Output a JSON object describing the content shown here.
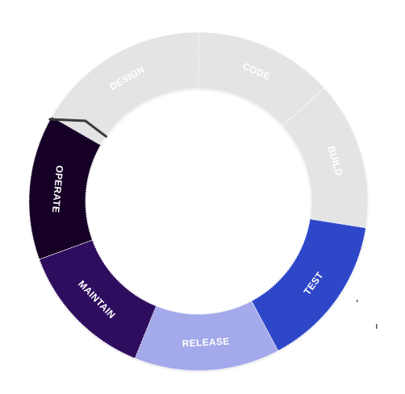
{
  "diagram": {
    "segments": [
      {
        "id": "design",
        "label": "DESIGN",
        "color": "#e4e4e4",
        "text_color": "#ffffff",
        "active": false
      },
      {
        "id": "code",
        "label": "CODE",
        "color": "#e4e4e4",
        "text_color": "#ffffff",
        "active": false
      },
      {
        "id": "build",
        "label": "BUILD",
        "color": "#e4e4e4",
        "text_color": "#ffffff",
        "active": false
      },
      {
        "id": "test",
        "label": "TEST",
        "color": "#2f46c9",
        "text_color": "#ffffff",
        "active": true
      },
      {
        "id": "release",
        "label": "RELEASE",
        "color": "#a3a9ea",
        "text_color": "#ffffff",
        "active": true
      },
      {
        "id": "maintain",
        "label": "MAINTAIN",
        "color": "#2d0a5e",
        "text_color": "#ffffff",
        "active": true
      },
      {
        "id": "operate",
        "label": "OPERATE",
        "color": "#160528",
        "text_color": "#ffffff",
        "active": true
      }
    ],
    "accent_edge_color": "#3b3b3b"
  }
}
